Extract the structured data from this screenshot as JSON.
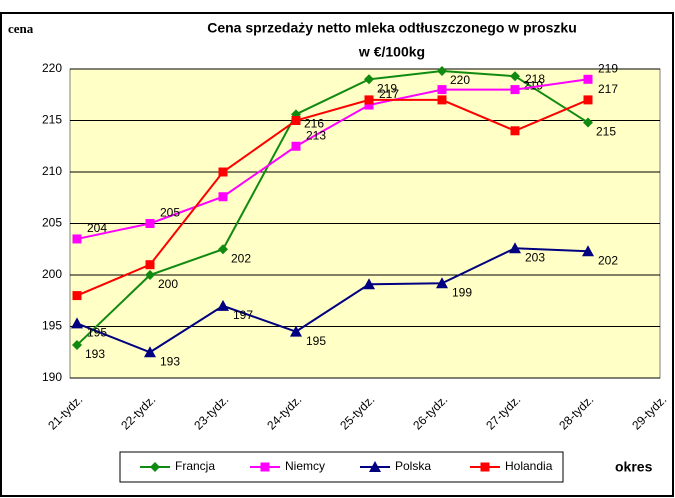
{
  "chart_data": {
    "type": "line",
    "title": "Cena sprzedaży netto mleka odtłuszczonego w proszku",
    "subtitle": "w €/100kg",
    "y_label": "cena",
    "x_label": "okres",
    "categories": [
      "21-tydz.",
      "22-tydz.",
      "23-tydz.",
      "24-tydz.",
      "25-tydz.",
      "26-tydz.",
      "27-tydz.",
      "28-tydz.",
      "29-tydz."
    ],
    "series": [
      {
        "name": "Francja",
        "color": "#118a11",
        "marker": "diamond",
        "values": [
          193.2,
          200,
          202.5,
          215.6,
          219,
          219.8,
          219.3,
          214.8,
          null
        ],
        "value_labels": [
          "193",
          "200",
          "202",
          "216",
          "219",
          "220",
          "219",
          "215",
          null
        ]
      },
      {
        "name": "Niemcy",
        "color": "#ff00ff",
        "marker": "square",
        "values": [
          203.5,
          205,
          207.6,
          212.5,
          216.5,
          218,
          218,
          219,
          null
        ],
        "value_labels": [
          "204",
          "205",
          null,
          "213",
          "217",
          null,
          "218",
          "219",
          null
        ]
      },
      {
        "name": "Polska",
        "color": "#000080",
        "marker": "triangle",
        "values": [
          195.3,
          192.5,
          197,
          194.5,
          199.1,
          199.2,
          202.6,
          202.3,
          null
        ],
        "value_labels": [
          "195",
          "193",
          "197",
          "195",
          null,
          "199",
          "203",
          "202",
          null
        ]
      },
      {
        "name": "Holandia",
        "color": "#ff0000",
        "marker": "square",
        "values": [
          198,
          201,
          210,
          215,
          217,
          217,
          214,
          217,
          null
        ],
        "value_labels": [
          null,
          null,
          null,
          null,
          null,
          null,
          null,
          "217",
          null
        ]
      }
    ],
    "ylim": [
      190,
      220
    ],
    "yticks": [
      190,
      195,
      200,
      205,
      210,
      215,
      220
    ],
    "grid": true,
    "legend": "bottom"
  }
}
